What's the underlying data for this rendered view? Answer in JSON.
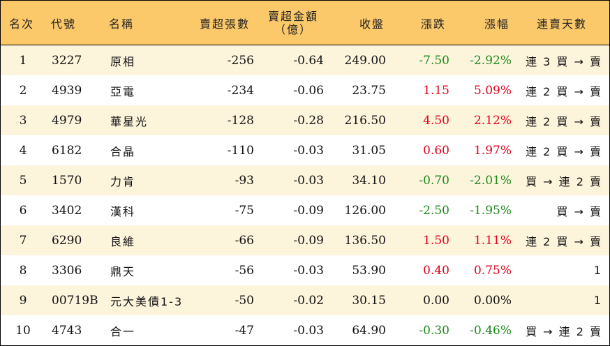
{
  "header": {
    "rank": "名次",
    "code": "代號",
    "name": "名稱",
    "short_lots": "賣超張數",
    "short_amount_line1": "賣超金額",
    "short_amount_line2": "（億）",
    "close": "收盤",
    "change": "漲跌",
    "change_pct": "漲幅",
    "streak": "連賣天數"
  },
  "colors": {
    "header_bg": "#fcc96a",
    "stripe_bg": "#fdf4dc",
    "up": "#e0001b",
    "down": "#1a8a1a"
  },
  "rows": [
    {
      "rank": "1",
      "code": "3227",
      "name": "原相",
      "lots": "-256",
      "amount": "-0.64",
      "close": "249.00",
      "change": "-7.50",
      "pct": "-2.92%",
      "dir": "down",
      "streak": "連 3 買 → 賣"
    },
    {
      "rank": "2",
      "code": "4939",
      "name": "亞電",
      "lots": "-234",
      "amount": "-0.06",
      "close": "23.75",
      "change": "1.15",
      "pct": "5.09%",
      "dir": "up",
      "streak": "連 2 買 → 賣"
    },
    {
      "rank": "3",
      "code": "4979",
      "name": "華星光",
      "lots": "-128",
      "amount": "-0.28",
      "close": "216.50",
      "change": "4.50",
      "pct": "2.12%",
      "dir": "up",
      "streak": "連 2 買 → 賣"
    },
    {
      "rank": "4",
      "code": "6182",
      "name": "合晶",
      "lots": "-110",
      "amount": "-0.03",
      "close": "31.05",
      "change": "0.60",
      "pct": "1.97%",
      "dir": "up",
      "streak": "連 2 買 → 賣"
    },
    {
      "rank": "5",
      "code": "1570",
      "name": "力肯",
      "lots": "-93",
      "amount": "-0.03",
      "close": "34.10",
      "change": "-0.70",
      "pct": "-2.01%",
      "dir": "down",
      "streak": "買 → 連 2 賣"
    },
    {
      "rank": "6",
      "code": "3402",
      "name": "漢科",
      "lots": "-75",
      "amount": "-0.09",
      "close": "126.00",
      "change": "-2.50",
      "pct": "-1.95%",
      "dir": "down",
      "streak": "買 → 賣"
    },
    {
      "rank": "7",
      "code": "6290",
      "name": "良維",
      "lots": "-66",
      "amount": "-0.09",
      "close": "136.50",
      "change": "1.50",
      "pct": "1.11%",
      "dir": "up",
      "streak": "連 2 買 → 賣"
    },
    {
      "rank": "8",
      "code": "3306",
      "name": "鼎天",
      "lots": "-56",
      "amount": "-0.03",
      "close": "53.90",
      "change": "0.40",
      "pct": "0.75%",
      "dir": "up",
      "streak": "1"
    },
    {
      "rank": "9",
      "code": "00719B",
      "name": "元大美債1-3",
      "lots": "-50",
      "amount": "-0.02",
      "close": "30.15",
      "change": "0.00",
      "pct": "0.00%",
      "dir": "flat",
      "streak": "1"
    },
    {
      "rank": "10",
      "code": "4743",
      "name": "合一",
      "lots": "-47",
      "amount": "-0.03",
      "close": "64.90",
      "change": "-0.30",
      "pct": "-0.46%",
      "dir": "down",
      "streak": "買 → 連 2 賣"
    }
  ]
}
